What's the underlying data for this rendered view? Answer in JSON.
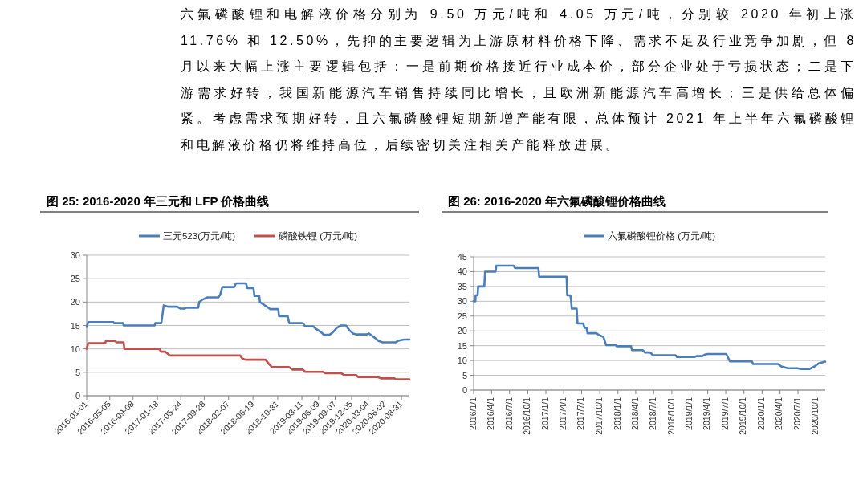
{
  "chart_data": [
    {
      "type": "other",
      "annotations": [
        "六氟磷酸锂和电解液价格分别为 9.50 万元/吨和 4.05 万元/吨，分别较 2020 年初上涨 11.76% 和 12.50%，先抑的主要逻辑为上游原材料价格下降、需求不足及行业竞争加剧，但 8 月以来大幅上涨主要逻辑包括：一是前期价格接近行业成本价，部分企业处于亏损状态；二是下游需求好转，我国新能源汽车销售持续同比增长，且欧洲新能源汽车高增长；三是供给总体偏紧。考虑需求预期好转，且六氟磷酸锂短期新增产能有限，总体预计 2021 年上半年六氟磷酸锂和电解液价格仍将维持高位，后续密切关注相关产能释放进展。"
      ]
    },
    {
      "type": "line",
      "title": "图 25:  2016-2020 年三元和 LFP 价格曲线",
      "legend": "top",
      "grid": "y",
      "xlim": [
        "2016-01-01",
        "2020-10-13"
      ],
      "ylim": [
        0,
        30
      ],
      "yticks": [
        0,
        5,
        10,
        15,
        20,
        25,
        30
      ],
      "xticks": [
        {
          "value": "2016-01-01",
          "label": "2016-01-01"
        },
        {
          "value": "2016-05-05",
          "label": "2016-05-05"
        },
        {
          "value": "2016-09-08",
          "label": "2016-09-08"
        },
        {
          "value": "2017-01-18",
          "label": "2017-01-18"
        },
        {
          "value": "2017-05-24",
          "label": "2017-05-24"
        },
        {
          "value": "2017-09-28",
          "label": "2017-09-28"
        },
        {
          "value": "2018-02-07",
          "label": "2018-02-07"
        },
        {
          "value": "2018-06-19",
          "label": "2018-06-19"
        },
        {
          "value": "2018-10-31",
          "label": "2018-10-31"
        },
        {
          "value": "2019-03-11",
          "label": "2019-03-11"
        },
        {
          "value": "2019-06-09",
          "label": "2019-06-09"
        },
        {
          "value": "2019-09-07",
          "label": "2019-09-07"
        },
        {
          "value": "2019-12-05",
          "label": "2019-12-05"
        },
        {
          "value": "2020-03-04",
          "label": "2020-03-04"
        },
        {
          "value": "2020-06-02",
          "label": "2020-06-02"
        },
        {
          "value": "2020-08-31",
          "label": "2020-08-31"
        }
      ],
      "series": [
        {
          "name": "三元523(万元/吨)",
          "color": "#4a7ebb",
          "x": [
            "2016-01-01",
            "2016-01-09",
            "2016-05-25",
            "2016-05-28",
            "2016-07-17",
            "2016-07-19",
            "2017-01-03",
            "2017-01-06",
            "2017-02-08",
            "2017-02-21",
            "2017-03-18",
            "2017-05-05",
            "2017-05-21",
            "2017-06-15",
            "2017-06-23",
            "2017-08-27",
            "2017-09-01",
            "2017-09-18",
            "2017-10-15",
            "2017-12-14",
            "2017-12-23",
            "2018-01-04",
            "2018-03-09",
            "2018-03-19",
            "2018-05-12",
            "2018-05-20",
            "2018-06-22",
            "2018-06-27",
            "2018-07-23",
            "2018-07-27",
            "2018-08-26",
            "2018-09-21",
            "2018-11-03",
            "2018-11-07",
            "2018-12-24",
            "2019-01-01",
            "2019-03-16",
            "2019-03-29",
            "2019-05-12",
            "2019-05-29",
            "2019-06-22",
            "2019-07-09",
            "2019-08-07",
            "2019-08-25",
            "2019-09-16",
            "2019-10-09",
            "2019-11-04",
            "2019-11-23",
            "2019-12-12",
            "2019-12-29",
            "2020-02-25",
            "2020-03-08",
            "2020-04-11",
            "2020-04-29",
            "2020-05-21",
            "2020-07-30",
            "2020-08-17",
            "2020-09-15",
            "2020-10-13"
          ],
          "values": [
            14.7,
            15.7,
            15.7,
            15.5,
            15.5,
            15.0,
            15.0,
            15.5,
            15.5,
            19.3,
            19.0,
            19.0,
            18.6,
            18.6,
            18.8,
            18.8,
            20.0,
            20.5,
            21.0,
            21.0,
            21.5,
            23.2,
            23.2,
            24.0,
            24.0,
            23.0,
            23.0,
            21.3,
            21.3,
            20.0,
            19.2,
            18.5,
            18.5,
            17.0,
            17.0,
            15.5,
            15.5,
            14.8,
            14.8,
            14.2,
            13.6,
            13.0,
            13.0,
            13.5,
            14.5,
            15.0,
            15.0,
            14.0,
            13.3,
            13.1,
            13.1,
            13.3,
            12.3,
            11.7,
            11.4,
            11.4,
            11.8,
            12.0,
            12.0
          ]
        },
        {
          "name": "磷酸铁锂 (万元/吨)",
          "color": "#c0504d",
          "x": [
            "2016-01-01",
            "2016-01-09",
            "2016-04-10",
            "2016-04-14",
            "2016-06-05",
            "2016-06-09",
            "2016-07-19",
            "2016-07-23",
            "2017-01-28",
            "2017-02-08",
            "2017-03-02",
            "2017-03-26",
            "2018-04-11",
            "2018-04-21",
            "2018-05-08",
            "2018-08-26",
            "2018-09-13",
            "2018-09-30",
            "2019-01-01",
            "2019-01-18",
            "2019-03-16",
            "2019-03-29",
            "2019-07-03",
            "2019-07-15",
            "2019-10-09",
            "2019-10-27",
            "2019-12-29",
            "2020-01-10",
            "2020-04-23",
            "2020-05-11",
            "2020-07-25",
            "2020-07-30",
            "2020-10-13"
          ],
          "values": [
            10.0,
            11.2,
            11.2,
            11.7,
            11.7,
            11.4,
            11.4,
            10.0,
            10.0,
            9.4,
            9.4,
            8.6,
            8.6,
            8.0,
            7.7,
            7.7,
            6.8,
            6.1,
            6.1,
            5.6,
            5.6,
            5.1,
            5.1,
            4.8,
            4.8,
            4.4,
            4.4,
            4.0,
            4.0,
            3.7,
            3.7,
            3.5,
            3.5
          ]
        }
      ]
    },
    {
      "type": "line",
      "title": "图 26:  2016-2020 年六氟磷酸锂价格曲线",
      "legend": "top",
      "grid": "y",
      "xlim": [
        "2016-01-01",
        "2020-11-16"
      ],
      "ylim": [
        0,
        45
      ],
      "yticks": [
        0,
        5,
        10,
        15,
        20,
        25,
        30,
        35,
        40,
        45
      ],
      "xticks": [
        {
          "value": "2016-01-01",
          "label": "2016/1/1"
        },
        {
          "value": "2016-04-01",
          "label": "2016/4/1"
        },
        {
          "value": "2016-07-01",
          "label": "2016/7/1"
        },
        {
          "value": "2016-10-01",
          "label": "2016/10/1"
        },
        {
          "value": "2017-01-01",
          "label": "2017/1/1"
        },
        {
          "value": "2017-04-01",
          "label": "2017/4/1"
        },
        {
          "value": "2017-07-01",
          "label": "2017/7/1"
        },
        {
          "value": "2017-10-01",
          "label": "2017/10/1"
        },
        {
          "value": "2018-01-01",
          "label": "2018/1/1"
        },
        {
          "value": "2018-04-01",
          "label": "2018/4/1"
        },
        {
          "value": "2018-07-01",
          "label": "2018/7/1"
        },
        {
          "value": "2018-10-01",
          "label": "2018/10/1"
        },
        {
          "value": "2019-01-01",
          "label": "2019/1/1"
        },
        {
          "value": "2019-04-01",
          "label": "2019/4/1"
        },
        {
          "value": "2019-07-01",
          "label": "2019/7/1"
        },
        {
          "value": "2019-10-01",
          "label": "2019/10/1"
        },
        {
          "value": "2020-01-01",
          "label": "2020/1/1"
        },
        {
          "value": "2020-04-01",
          "label": "2020/4/1"
        },
        {
          "value": "2020-07-01",
          "label": "2020/7/1"
        },
        {
          "value": "2020-10-01",
          "label": "2020/10/1"
        }
      ],
      "series": [
        {
          "name": "六氟磷酸锂价格 (万元/吨)",
          "color": "#4a7ebb",
          "x": [
            "2016-01-01",
            "2016-01-10",
            "2016-01-11",
            "2016-01-21",
            "2016-01-24",
            "2016-02-24",
            "2016-02-28",
            "2016-04-21",
            "2016-04-25",
            "2016-07-22",
            "2016-07-29",
            "2016-11-24",
            "2016-11-28",
            "2017-04-16",
            "2017-04-19",
            "2017-05-05",
            "2017-05-09",
            "2017-05-12",
            "2017-06-06",
            "2017-06-10",
            "2017-07-09",
            "2017-07-16",
            "2017-07-26",
            "2017-07-31",
            "2017-09-15",
            "2017-09-29",
            "2017-10-19",
            "2017-11-02",
            "2017-12-22",
            "2017-12-26",
            "2018-03-08",
            "2018-03-13",
            "2018-05-06",
            "2018-05-17",
            "2018-06-13",
            "2018-06-27",
            "2018-10-20",
            "2018-10-27",
            "2019-01-23",
            "2019-02-05",
            "2019-03-04",
            "2019-03-18",
            "2019-03-31",
            "2019-07-04",
            "2019-07-22",
            "2019-11-10",
            "2019-11-17",
            "2020-03-22",
            "2020-04-07",
            "2020-05-11",
            "2020-06-27",
            "2020-07-17",
            "2020-08-27",
            "2020-09-23",
            "2020-10-13",
            "2020-11-16"
          ],
          "values": [
            30.0,
            30.0,
            32.0,
            32.0,
            35.0,
            35.0,
            40.0,
            40.0,
            42.0,
            42.0,
            41.2,
            41.2,
            38.3,
            38.3,
            32.0,
            32.0,
            30.0,
            27.5,
            27.5,
            22.5,
            22.5,
            21.0,
            21.0,
            19.2,
            19.2,
            18.5,
            18.0,
            15.2,
            15.2,
            14.8,
            14.8,
            13.5,
            13.5,
            12.7,
            12.7,
            11.8,
            11.8,
            11.2,
            11.2,
            11.5,
            11.5,
            12.0,
            12.2,
            12.2,
            9.7,
            9.7,
            8.8,
            8.8,
            8.0,
            7.4,
            7.4,
            7.1,
            7.1,
            8.0,
            9.0,
            9.6
          ]
        }
      ]
    }
  ]
}
